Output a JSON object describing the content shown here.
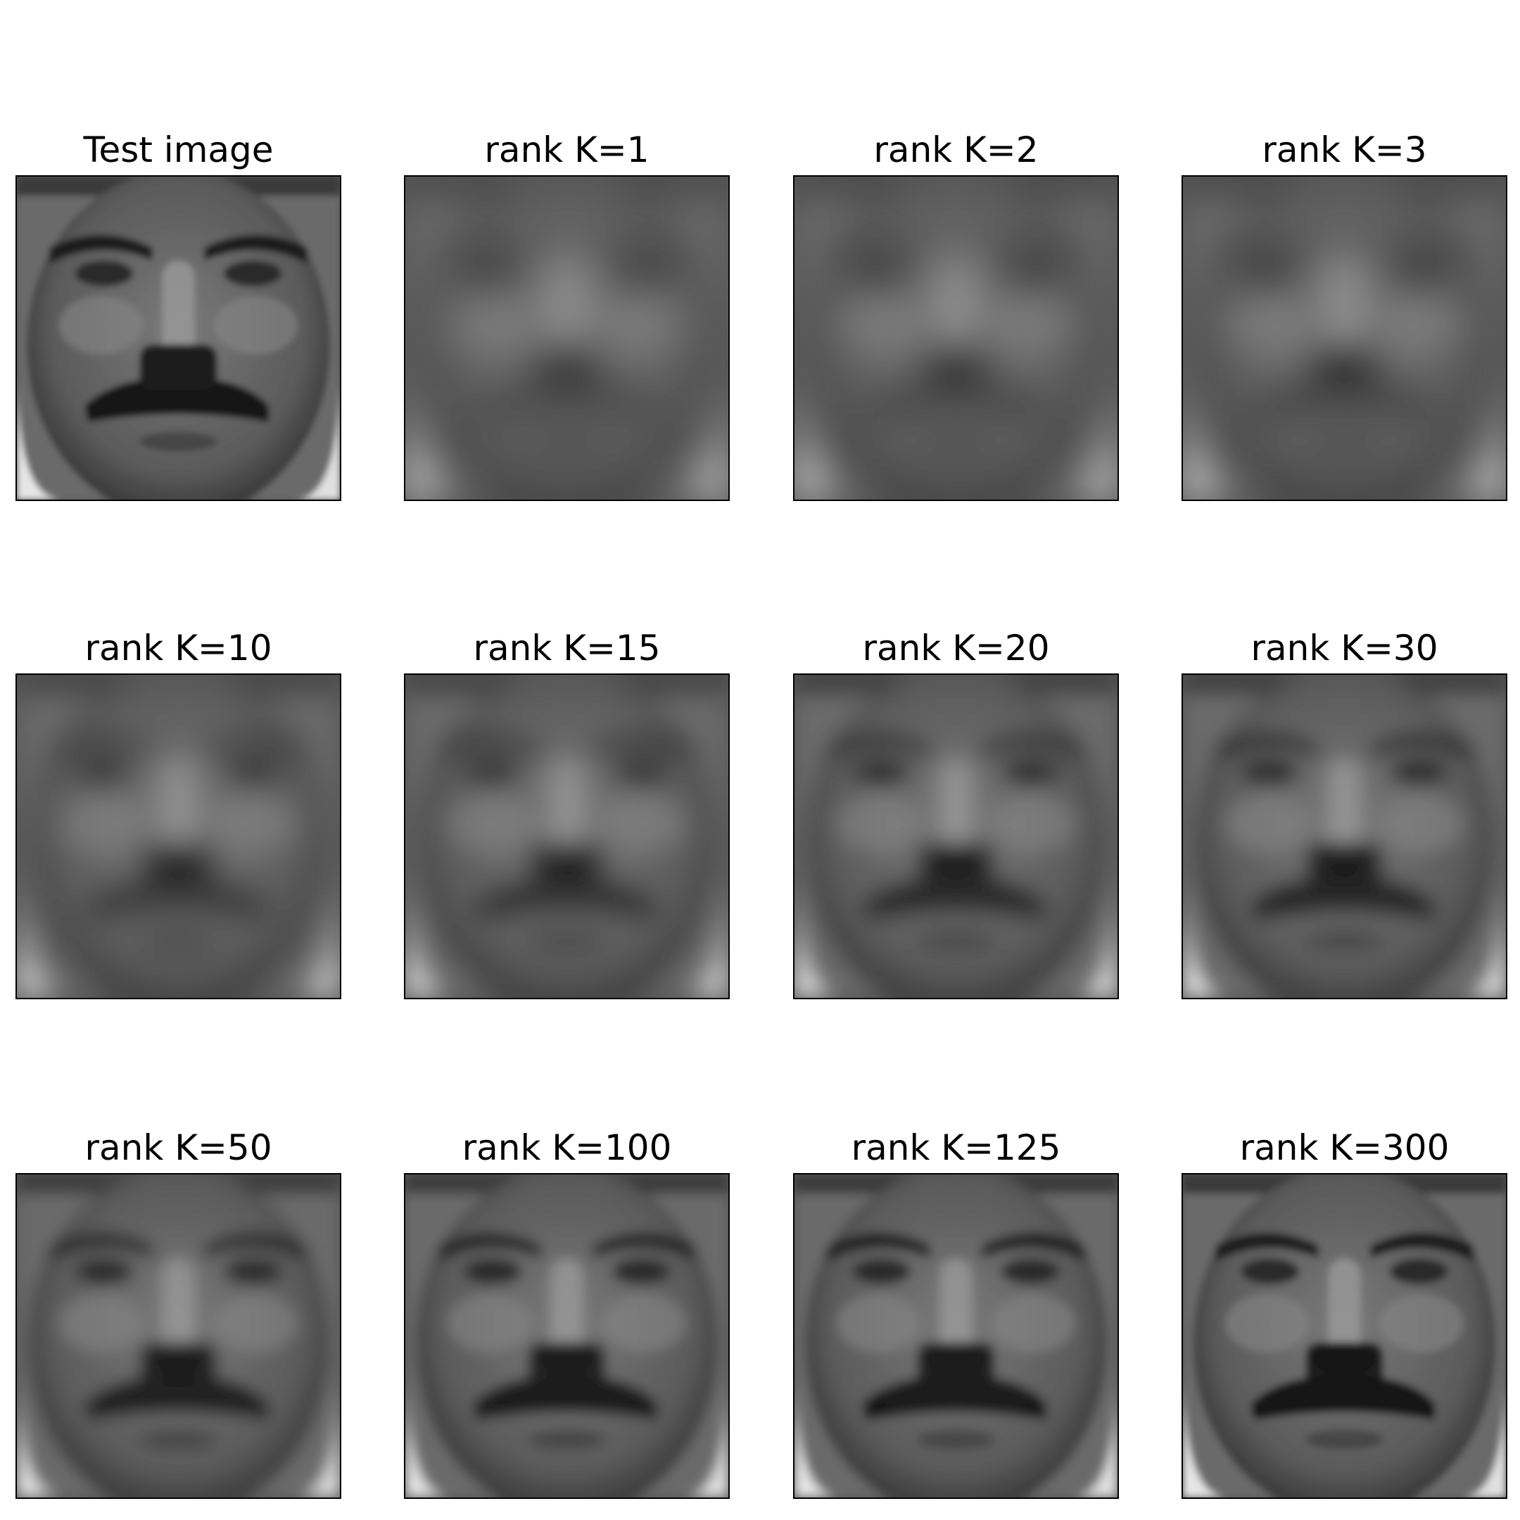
{
  "figure": {
    "panels": [
      {
        "title": "Test image",
        "detail": 1.0
      },
      {
        "title": "rank K=1",
        "detail": 0.0
      },
      {
        "title": "rank K=2",
        "detail": 0.04
      },
      {
        "title": "rank K=3",
        "detail": 0.08
      },
      {
        "title": "rank K=10",
        "detail": 0.3
      },
      {
        "title": "rank K=15",
        "detail": 0.4
      },
      {
        "title": "rank K=20",
        "detail": 0.55
      },
      {
        "title": "rank K=30",
        "detail": 0.62
      },
      {
        "title": "rank K=50",
        "detail": 0.72
      },
      {
        "title": "rank K=100",
        "detail": 0.82
      },
      {
        "title": "rank K=125",
        "detail": 0.88
      },
      {
        "title": "rank K=300",
        "detail": 0.97
      }
    ]
  }
}
